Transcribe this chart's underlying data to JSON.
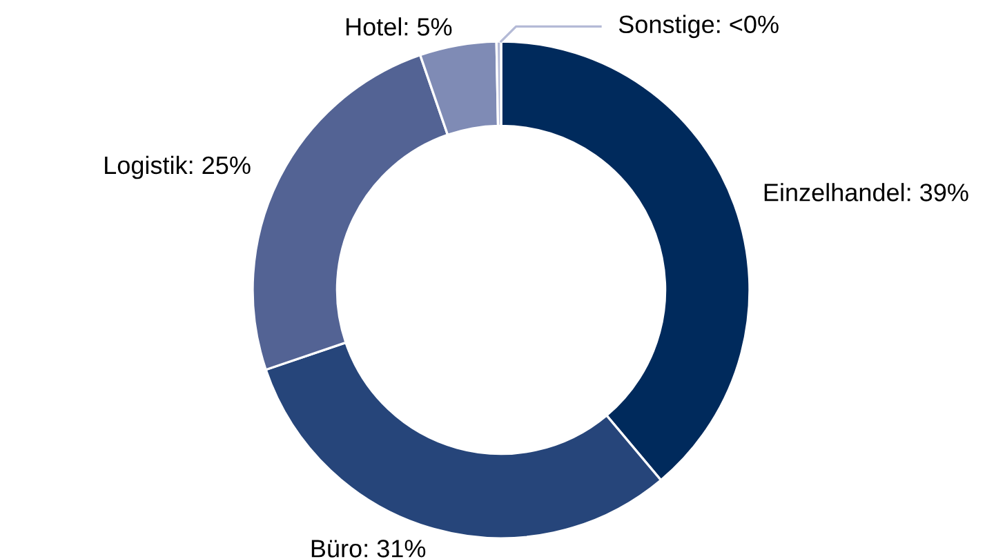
{
  "chart_data": {
    "type": "donut",
    "categories": [
      "Einzelhandel",
      "Büro",
      "Logistik",
      "Hotel",
      "Sonstige"
    ],
    "values": [
      39,
      31,
      25,
      5,
      0.3
    ],
    "value_labels": [
      "39%",
      "31%",
      "25%",
      "5%",
      "<0%"
    ],
    "colors": [
      "#002a5c",
      "#26457a",
      "#536394",
      "#7f8bb5",
      "#b4bad6"
    ],
    "legend": false
  }
}
